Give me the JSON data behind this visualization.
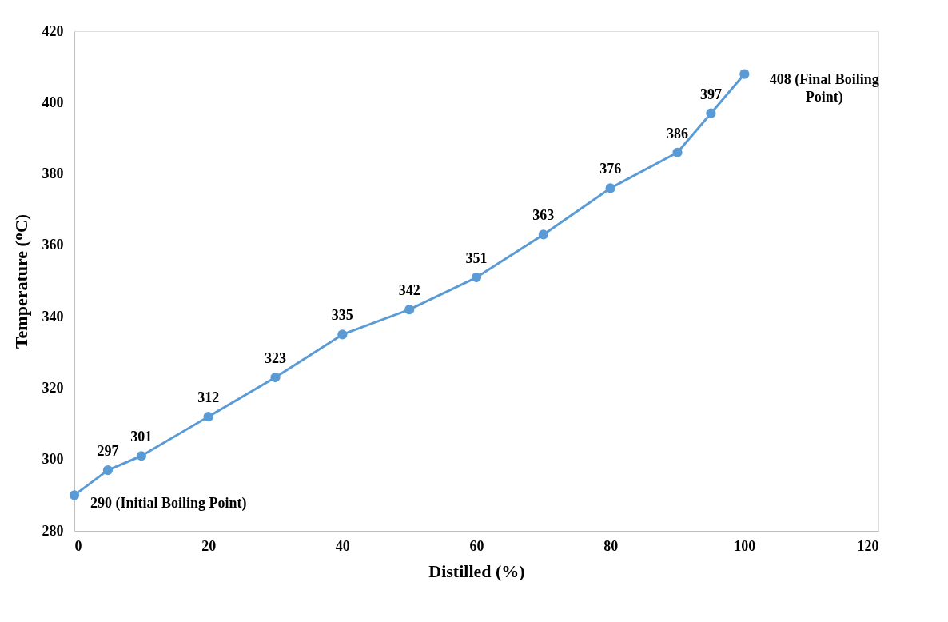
{
  "chart_data": {
    "type": "line",
    "xlabel": "Distilled (%)",
    "ylabel": "Temperature (ᴼC)",
    "x": [
      0,
      5,
      10,
      20,
      30,
      40,
      50,
      60,
      70,
      80,
      90,
      95,
      100
    ],
    "series": [
      {
        "color": "#5b9bd5",
        "values": [
          290,
          297,
          301,
          312,
          323,
          335,
          342,
          351,
          363,
          376,
          386,
          397,
          408
        ],
        "value_labels": [
          "290 (Initial Boiling Point)",
          "297",
          "301",
          "312",
          "323",
          "335",
          "342",
          "351",
          "363",
          "376",
          "386",
          "397",
          "408 (Final Boiling Point)"
        ]
      }
    ],
    "xlim": [
      0,
      120
    ],
    "xticks": [
      0,
      20,
      40,
      60,
      80,
      100,
      120
    ],
    "ylim": [
      280,
      420
    ],
    "yticks": [
      280,
      300,
      320,
      340,
      360,
      380,
      400,
      420
    ],
    "grid": false,
    "marker": "circle",
    "line_style": "solid"
  }
}
